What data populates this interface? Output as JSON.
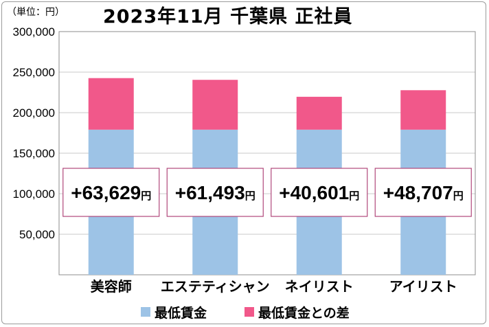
{
  "unit_label": "（単位：円）",
  "chart_data": {
    "type": "bar",
    "stacked": true,
    "title": "2023年11月 千葉県 正社員",
    "categories": [
      "美容師",
      "エステティシャン",
      "ネイリスト",
      "アイリスト"
    ],
    "series": [
      {
        "name": "最低賃金",
        "color": "#9dc3e6",
        "values": [
          179000,
          179000,
          179000,
          179000
        ]
      },
      {
        "name": "最低賃金との差",
        "color": "#f1588a",
        "values": [
          63629,
          61493,
          40601,
          48707
        ]
      }
    ],
    "diff_labels": [
      {
        "value": "+63,629",
        "unit": "円"
      },
      {
        "value": "+61,493",
        "unit": "円"
      },
      {
        "value": "+40,601",
        "unit": "円"
      },
      {
        "value": "+48,707",
        "unit": "円"
      }
    ],
    "ylim": [
      0,
      300000
    ],
    "yticks": [
      {
        "value": 300000,
        "label": "300,000"
      },
      {
        "value": 250000,
        "label": "250,000"
      },
      {
        "value": 200000,
        "label": "200,000"
      },
      {
        "value": 150000,
        "label": "150,000"
      },
      {
        "value": 100000,
        "label": "100,000"
      },
      {
        "value": 50000,
        "label": "50,000"
      }
    ],
    "grid": true,
    "legend_position": "bottom"
  }
}
